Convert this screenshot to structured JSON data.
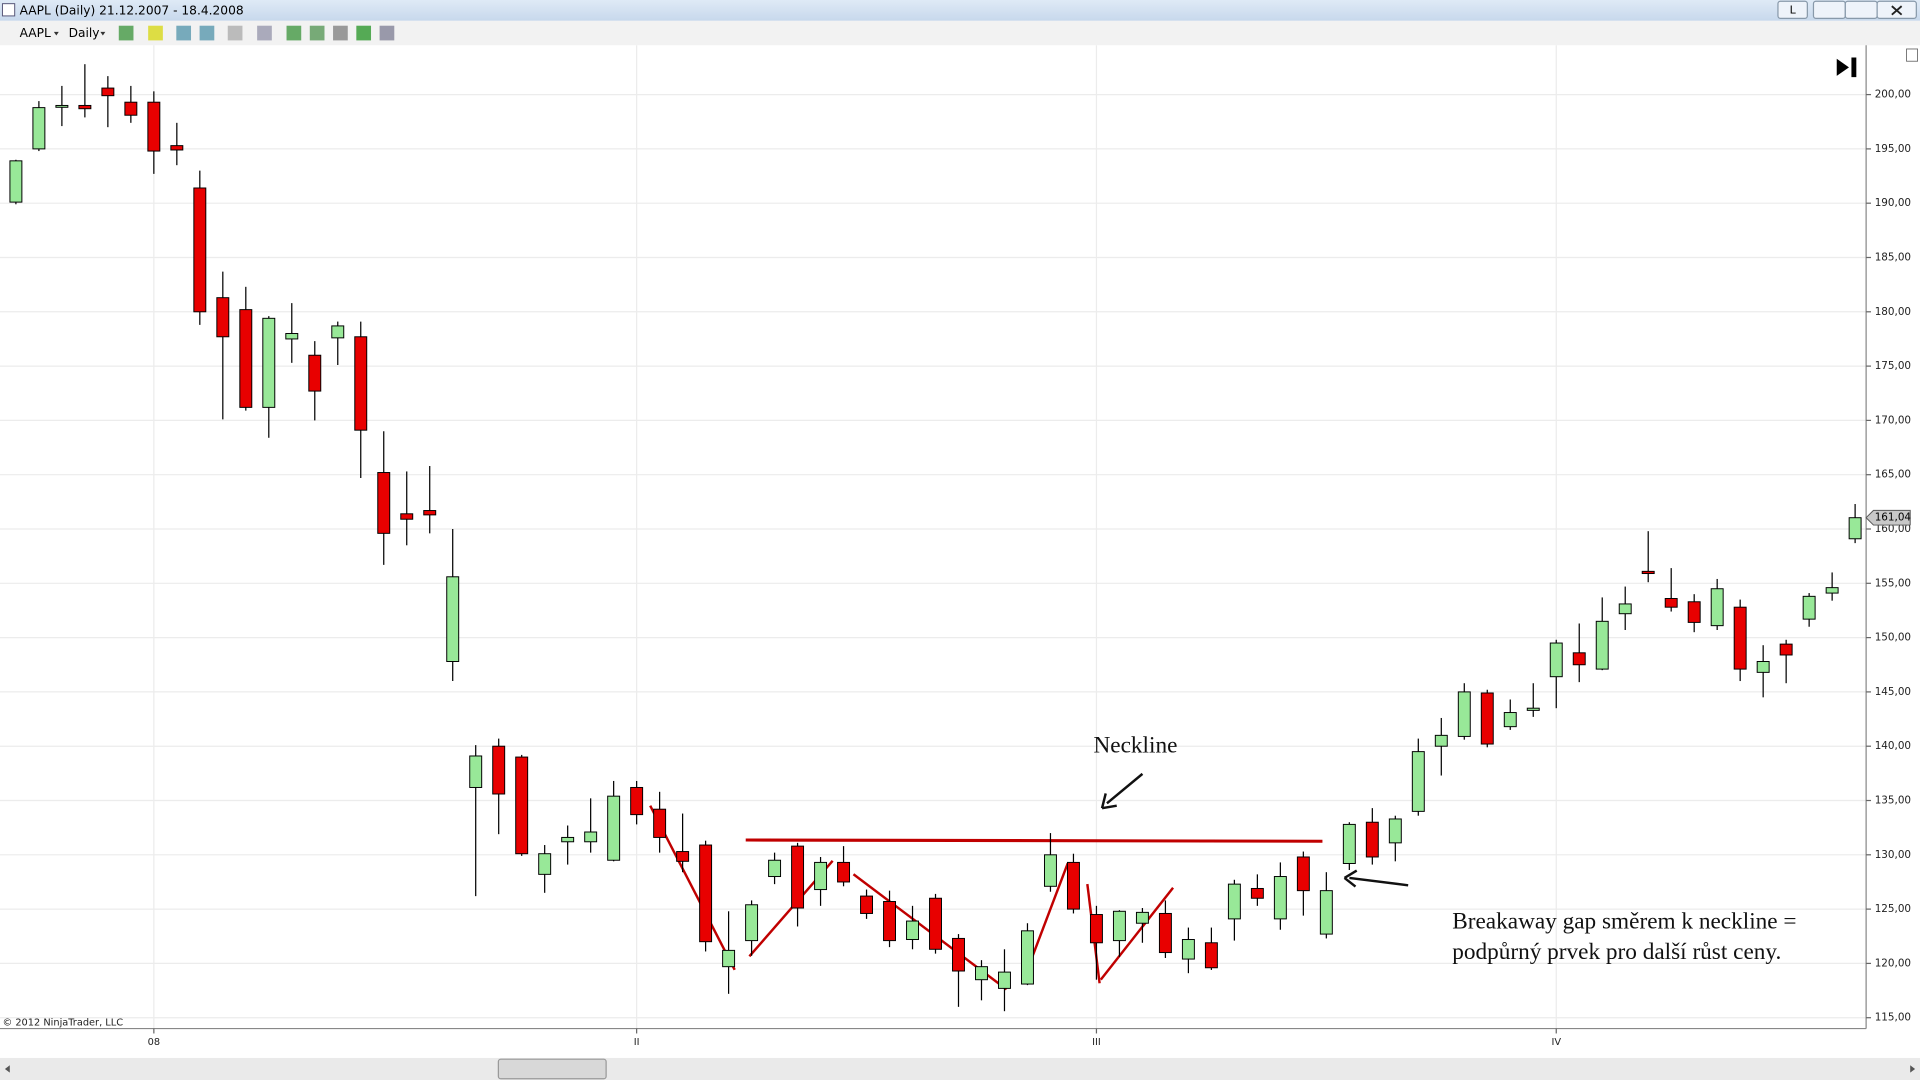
{
  "window_title": "AAPL (Daily)  21.12.2007 - 18.4.2008",
  "window_button": "L",
  "toolbar": {
    "instrument": "AAPL",
    "period": "Daily"
  },
  "chart_data": {
    "type": "candlestick",
    "categories": [
      null,
      null,
      null,
      null,
      null,
      null,
      "08",
      null,
      null,
      null,
      null,
      null,
      null,
      null,
      null,
      null,
      null,
      null,
      null,
      null,
      null,
      null,
      null,
      null,
      null,
      null,
      null,
      "II",
      null,
      null,
      null,
      null,
      null,
      null,
      null,
      null,
      null,
      null,
      null,
      null,
      null,
      null,
      null,
      null,
      null,
      null,
      null,
      "III",
      null,
      null,
      null,
      null,
      null,
      null,
      null,
      null,
      null,
      null,
      null,
      null,
      null,
      null,
      null,
      null,
      null,
      null,
      null,
      "IV",
      null,
      null,
      null,
      null,
      null,
      null,
      null,
      null,
      null,
      null,
      null,
      null,
      null
    ],
    "open": [
      190.1,
      195.0,
      199,
      199,
      200.6,
      199.3,
      199.3,
      195.3,
      191.4,
      181.3,
      180.2,
      171.2,
      177.5,
      176,
      177.6,
      177.7,
      165.2,
      161.4,
      161.7,
      147.8,
      136.2,
      140,
      139,
      128.2,
      131.2,
      131.2,
      129.5,
      136.2,
      134.2,
      130.3,
      130.9,
      119.7,
      122.1,
      128,
      130.8,
      126.8,
      129.3,
      126.2,
      125.7,
      122.2,
      126,
      122.3,
      118.5,
      117.7,
      118.1,
      127.1,
      129.3,
      124.5,
      122.1,
      123.7,
      124.6,
      120.4,
      121.9,
      124.1,
      126.9,
      124.1,
      129.8,
      122.7,
      129.2,
      133,
      131.1,
      134,
      140,
      140.9,
      144.9,
      141.8,
      143.3,
      146.4,
      148.6,
      147.1,
      152.2,
      156.1,
      153.6,
      153.3,
      151.1,
      152.8,
      146.8,
      149.4,
      151.7,
      154.1,
      159.1
    ],
    "high": [
      194,
      199.4,
      200.8,
      202.8,
      201.7,
      200.8,
      200.3,
      197.4,
      193,
      183.7,
      182.3,
      179.6,
      180.8,
      177.3,
      179.1,
      179.1,
      169,
      165.3,
      165.8,
      160,
      140.1,
      140.7,
      139.2,
      130.9,
      132.7,
      135.2,
      136.8,
      136.8,
      135.8,
      133.8,
      131.3,
      124.8,
      125.8,
      130.2,
      131.1,
      129.8,
      130.8,
      126.8,
      126.7,
      125.3,
      126.4,
      122.7,
      120.3,
      121.3,
      123.7,
      132,
      130.1,
      125.3,
      124.9,
      125.1,
      125.8,
      123.3,
      123.3,
      127.7,
      128.2,
      129.3,
      130.3,
      128.4,
      133,
      134.3,
      133.6,
      140.7,
      142.6,
      145.8,
      145.2,
      144.3,
      145.8,
      149.8,
      151.3,
      153.7,
      154.7,
      159.8,
      156.4,
      154,
      155.4,
      153.5,
      149.3,
      149.8,
      154.1,
      156,
      162.3
    ],
    "low": [
      189.9,
      194.8,
      197.1,
      197.9,
      197,
      197.4,
      192.7,
      193.5,
      178.8,
      170.1,
      170.9,
      168.4,
      175.3,
      170,
      175.1,
      164.7,
      156.7,
      158.5,
      159.6,
      146,
      126.2,
      131.9,
      129.9,
      126.5,
      129.1,
      130.2,
      129.4,
      132.8,
      130.2,
      128.4,
      121.1,
      117.2,
      120.7,
      127.3,
      123.4,
      125.3,
      127.1,
      124.1,
      121.5,
      121.3,
      120.9,
      116,
      116.6,
      115.6,
      118,
      126.6,
      124.6,
      118.5,
      120.6,
      121.9,
      120.5,
      119.1,
      119.4,
      122.1,
      125.3,
      123.1,
      124.4,
      122.3,
      128.6,
      129.1,
      129.4,
      133.6,
      137.3,
      140.6,
      139.9,
      141.5,
      142.7,
      143.5,
      145.9,
      147,
      150.7,
      155.1,
      152.4,
      150.5,
      150.7,
      146,
      144.5,
      145.8,
      151,
      153.4,
      158.7
    ],
    "close": [
      193.9,
      198.8,
      199,
      198.7,
      199.9,
      198.1,
      194.8,
      194.9,
      180,
      177.7,
      171.2,
      179.4,
      178,
      172.7,
      178.7,
      169.1,
      159.6,
      160.9,
      161.3,
      155.6,
      139.1,
      135.6,
      130.1,
      130.1,
      131.6,
      132.1,
      135.4,
      133.7,
      131.6,
      129.4,
      122,
      121.2,
      125.4,
      129.5,
      125.1,
      129.3,
      127.5,
      124.6,
      122.1,
      123.9,
      121.3,
      119.3,
      119.7,
      119.2,
      123,
      130,
      125,
      121.9,
      124.8,
      124.7,
      121,
      122.2,
      119.6,
      127.3,
      126,
      128,
      126.7,
      126.7,
      132.8,
      129.8,
      133.3,
      139.5,
      141,
      145,
      140.2,
      143.1,
      143.5,
      149.5,
      147.5,
      151.5,
      153.1,
      155.9,
      152.8,
      151.4,
      154.5,
      147.1,
      147.8,
      148.4,
      153.8,
      154.6,
      161.04
    ],
    "up_color": "#98e898",
    "down_color": "#e80000",
    "ylim": [
      114,
      204.2
    ],
    "yticks": [
      {
        "value": 115,
        "label": "115,00"
      },
      {
        "value": 120,
        "label": "120,00"
      },
      {
        "value": 125,
        "label": "125,00"
      },
      {
        "value": 130,
        "label": "130,00"
      },
      {
        "value": 135,
        "label": "135,00"
      },
      {
        "value": 140,
        "label": "140,00"
      },
      {
        "value": 145,
        "label": "145,00"
      },
      {
        "value": 150,
        "label": "150,00"
      },
      {
        "value": 155,
        "label": "155,00"
      },
      {
        "value": 160,
        "label": "160,00"
      },
      {
        "value": 165,
        "label": "165,00"
      },
      {
        "value": 170,
        "label": "170,00"
      },
      {
        "value": 175,
        "label": "175,00"
      },
      {
        "value": 180,
        "label": "180,00"
      },
      {
        "value": 185,
        "label": "185,00"
      },
      {
        "value": 190,
        "label": "190,00"
      },
      {
        "value": 195,
        "label": "195,00"
      },
      {
        "value": 200,
        "label": "200,00"
      }
    ],
    "last_price": {
      "value": 161.04,
      "label": "161,04"
    },
    "grid": true,
    "copyright": "© 2012 NinjaTrader, LLC",
    "annotations": {
      "neckline": "Neckline",
      "note_line1": "Breakaway gap směrem k neckline =",
      "note_line2": "podpůrný prvek pro další růst ceny."
    }
  }
}
